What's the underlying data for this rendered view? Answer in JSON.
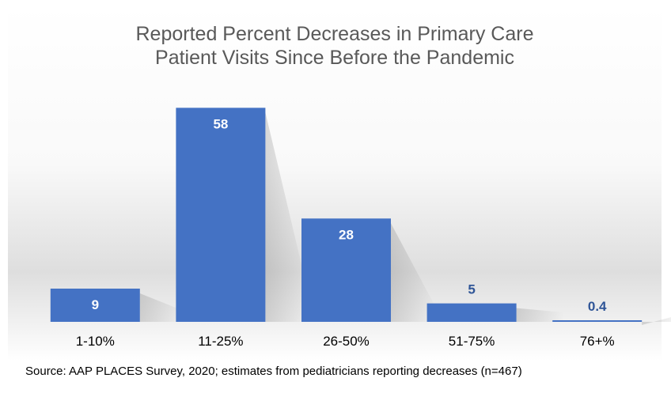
{
  "chart_data": {
    "type": "bar",
    "title": "Reported Percent Decreases in Primary Care Patient Visits Since Before the Pandemic",
    "title_lines": [
      "Reported Percent Decreases in Primary Care",
      "Patient Visits Since Before the Pandemic"
    ],
    "categories": [
      "1-10%",
      "11-25%",
      "26-50%",
      "51-75%",
      "76+%"
    ],
    "values": [
      9,
      58,
      28,
      5,
      0.4
    ],
    "value_labels": [
      "9",
      "58",
      "28",
      "5",
      "0.4"
    ],
    "xlabel": "",
    "ylabel": "",
    "ylim": [
      0,
      60
    ],
    "grid": false,
    "legend": "none",
    "bar_color": "#4472c4",
    "label_inside_color": "#ffffff",
    "label_outside_color": "#2f5597"
  },
  "source": "Source: AAP PLACES Survey, 2020; estimates from pediatricians reporting decreases (n=467)"
}
